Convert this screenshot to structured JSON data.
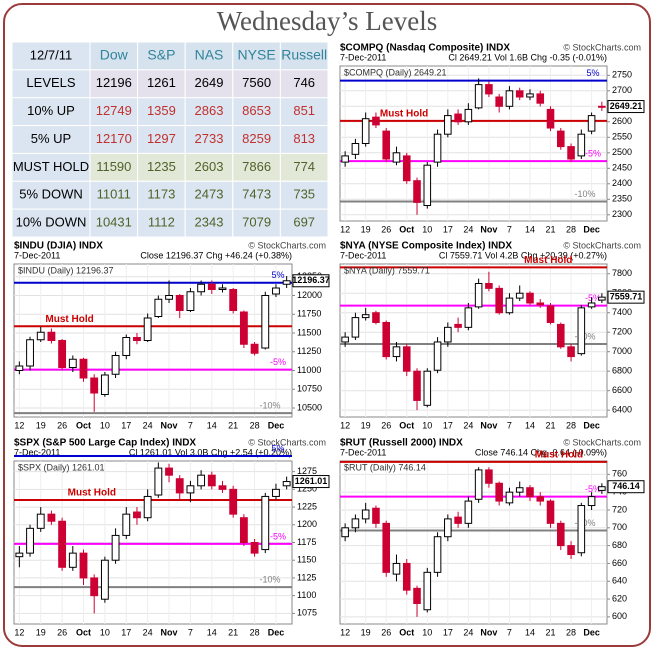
{
  "title": "Wednesday’s Levels",
  "table": {
    "header": [
      "12/7/11",
      "Dow",
      "S&P",
      "NAS",
      "NYSE",
      "Russell"
    ],
    "rows": [
      [
        "LEVELS",
        12196,
        1261,
        2649,
        7560,
        746
      ],
      [
        "10% UP",
        12749,
        1359,
        2863,
        8653,
        851
      ],
      [
        "5% UP",
        12170,
        1297,
        2733,
        8259,
        813
      ],
      [
        "MUST HOLD",
        11590,
        1235,
        2603,
        7866,
        774
      ],
      [
        "5% DOWN",
        11011,
        1173,
        2473,
        7473,
        735
      ],
      [
        "10% DOWN",
        10431,
        1112,
        2343,
        7079,
        697
      ]
    ]
  },
  "chart_data": [
    {
      "type": "candlestick",
      "title": "$COMPQ (Nasdaq Composite) INDX",
      "watermark": "© StockCharts.com",
      "date": "7-Dec-2011",
      "stats": "Cl 2649.21 Vol 1.6B Chg -0.35 (-0.01%)",
      "legend": "$COMPQ (Daily) 2649.21",
      "last_price": 2649.21,
      "up_color": "#000000",
      "down_color": "#cc0033",
      "categories": [
        "12",
        null,
        "19",
        null,
        "26",
        null,
        "Oct",
        null,
        "10",
        null,
        "17",
        null,
        "24",
        null,
        "Nov",
        null,
        "7",
        null,
        "14",
        null,
        "21",
        null,
        "28",
        null,
        "Dec",
        null
      ],
      "open": [
        2470,
        2495,
        2530,
        2615,
        2570,
        2470,
        2490,
        2410,
        2330,
        2470,
        2560,
        2625,
        2600,
        2645,
        2720,
        2680,
        2650,
        2700,
        2680,
        2690,
        2640,
        2570,
        2520,
        2490,
        2570,
        2650
      ],
      "high": [
        2505,
        2545,
        2630,
        2630,
        2580,
        2520,
        2500,
        2420,
        2470,
        2575,
        2640,
        2640,
        2660,
        2740,
        2730,
        2690,
        2715,
        2710,
        2705,
        2700,
        2650,
        2580,
        2530,
        2575,
        2630,
        2665
      ],
      "low": [
        2455,
        2480,
        2520,
        2580,
        2470,
        2460,
        2400,
        2300,
        2320,
        2455,
        2550,
        2590,
        2590,
        2640,
        2680,
        2630,
        2640,
        2670,
        2670,
        2650,
        2570,
        2510,
        2470,
        2480,
        2560,
        2635
      ],
      "close": [
        2490,
        2530,
        2610,
        2590,
        2480,
        2500,
        2410,
        2340,
        2460,
        2560,
        2620,
        2600,
        2640,
        2720,
        2690,
        2650,
        2700,
        2680,
        2690,
        2660,
        2580,
        2520,
        2480,
        2560,
        2620,
        2649.21
      ],
      "levels": [
        {
          "label": "5%",
          "value": 2733,
          "color": "#0000cc"
        },
        {
          "label": "Must Hold",
          "value": 2603,
          "color": "#cc0000"
        },
        {
          "label": "-5%",
          "value": 2473,
          "color": "#ff00ff"
        },
        {
          "label": "-10%",
          "value": 2343,
          "color": "#808080"
        }
      ],
      "ylim": [
        2280,
        2780
      ],
      "yticks": [
        2300,
        2350,
        2400,
        2450,
        2500,
        2550,
        2600,
        2650,
        2700,
        2750
      ],
      "grid": true
    },
    {
      "type": "candlestick",
      "title": "$INDU (DJIA) INDX",
      "watermark": "© StockCharts.com",
      "date": "7-Dec-2011",
      "stats": "Close 12196.37 Chg +46.24 (+0.38%)",
      "legend": "$INDU (Daily) 12196.37",
      "last_price": 12196.37,
      "up_color": "#000000",
      "down_color": "#cc0033",
      "categories": [
        "12",
        null,
        "19",
        null,
        "26",
        null,
        "Oct",
        null,
        "10",
        null,
        "17",
        null,
        "24",
        null,
        "Nov",
        null,
        "7",
        null,
        "14",
        null,
        "21",
        null,
        "28",
        null,
        "Dec",
        null
      ],
      "open": [
        11000,
        11060,
        11410,
        11510,
        11400,
        11040,
        11150,
        10900,
        10680,
        10950,
        11200,
        11440,
        11400,
        11720,
        11950,
        12000,
        11800,
        12050,
        12150,
        12080,
        12080,
        11780,
        11350,
        11300,
        12020,
        12150
      ],
      "high": [
        11120,
        11450,
        11580,
        11560,
        11420,
        11200,
        11170,
        10950,
        10980,
        11250,
        11480,
        11500,
        11760,
        12000,
        12200,
        12020,
        12100,
        12200,
        12200,
        12150,
        12100,
        11800,
        11380,
        12050,
        12150,
        12260
      ],
      "low": [
        10950,
        11000,
        11380,
        11360,
        11000,
        10980,
        10850,
        10450,
        10650,
        10900,
        11150,
        11350,
        11380,
        11700,
        11900,
        11700,
        11780,
        12000,
        12020,
        12040,
        11760,
        11300,
        11200,
        11280,
        11980,
        12100
      ],
      "close": [
        11060,
        11410,
        11510,
        11400,
        11040,
        11150,
        10900,
        10700,
        10940,
        11200,
        11440,
        11400,
        11700,
        11950,
        12000,
        11800,
        12050,
        12150,
        12080,
        12100,
        11800,
        11350,
        11230,
        12000,
        12100,
        12196.37
      ],
      "levels": [
        {
          "label": "5%",
          "value": 12170,
          "color": "#0000cc"
        },
        {
          "label": "Must Hold",
          "value": 11590,
          "color": "#cc0000"
        },
        {
          "label": "-5%",
          "value": 11011,
          "color": "#ff00ff"
        },
        {
          "label": "-10%",
          "value": 10431,
          "color": "#808080"
        }
      ],
      "ylim": [
        10380,
        12420
      ],
      "yticks": [
        10500,
        10750,
        11000,
        11250,
        11500,
        11750,
        12000,
        12250
      ],
      "grid": true
    },
    {
      "type": "candlestick",
      "title": "$NYA (NYSE Composite Index) INDX",
      "watermark": "© StockCharts.com",
      "date": "7-Dec-2011",
      "stats": "Cl 7559.71 Vol 4.2B Chg +20.39 (+0.27%)",
      "legend": "$NYA (Daily) 7559.71",
      "last_price": 7559.71,
      "up_color": "#000000",
      "down_color": "#cc0033",
      "categories": [
        "12",
        null,
        "19",
        null,
        "26",
        null,
        "Oct",
        null,
        "10",
        null,
        "17",
        null,
        "24",
        null,
        "Nov",
        null,
        "7",
        null,
        "14",
        null,
        "21",
        null,
        "28",
        null,
        "Dec",
        null
      ],
      "open": [
        7100,
        7150,
        7350,
        7400,
        7300,
        6950,
        7050,
        6800,
        6450,
        6810,
        7100,
        7280,
        7250,
        7460,
        7700,
        7650,
        7400,
        7550,
        7600,
        7500,
        7470,
        7280,
        7050,
        6980,
        7460,
        7530
      ],
      "high": [
        7200,
        7400,
        7450,
        7420,
        7320,
        7100,
        7080,
        6830,
        6830,
        7150,
        7300,
        7350,
        7500,
        7750,
        7820,
        7680,
        7600,
        7680,
        7620,
        7540,
        7500,
        7300,
        7080,
        7480,
        7560,
        7600
      ],
      "low": [
        7050,
        7120,
        7320,
        7280,
        6920,
        6900,
        6750,
        6400,
        6430,
        6780,
        7050,
        7200,
        7220,
        7440,
        7620,
        7380,
        7380,
        7520,
        7480,
        7450,
        7280,
        7030,
        6900,
        6960,
        7440,
        7500
      ],
      "close": [
        7150,
        7350,
        7380,
        7300,
        6950,
        7050,
        6800,
        6500,
        6800,
        7100,
        7250,
        7250,
        7450,
        7700,
        7650,
        7400,
        7550,
        7600,
        7500,
        7480,
        7300,
        7050,
        6950,
        7450,
        7500,
        7559.71
      ],
      "levels": [
        {
          "label": "Must Hold",
          "value": 7866,
          "color": "#cc0000"
        },
        {
          "label": "-5%",
          "value": 7473,
          "color": "#ff00ff"
        },
        {
          "label": "-10%",
          "value": 7079,
          "color": "#808080"
        }
      ],
      "ylim": [
        6330,
        7900
      ],
      "yticks": [
        6400,
        6600,
        6800,
        7000,
        7200,
        7400,
        7600,
        7800
      ],
      "grid": true
    },
    {
      "type": "candlestick",
      "title": "$SPX (S&P 500 Large Cap Index) INDX",
      "watermark": "© StockCharts.com",
      "date": "7-Dec-2011",
      "stats": "Cl 1261.01 Vol 3.0B Chg +2.54 (+0.20%)",
      "legend": "$SPX (Daily) 1261.01",
      "last_price": 1261.01,
      "up_color": "#000000",
      "down_color": "#cc0033",
      "categories": [
        "12",
        null,
        "19",
        null,
        "26",
        null,
        "Oct",
        null,
        "10",
        null,
        "17",
        null,
        "24",
        null,
        "Nov",
        null,
        "7",
        null,
        "14",
        null,
        "21",
        null,
        "28",
        null,
        "Dec",
        null
      ],
      "open": [
        1155,
        1160,
        1195,
        1215,
        1205,
        1140,
        1160,
        1125,
        1095,
        1150,
        1185,
        1218,
        1210,
        1242,
        1280,
        1265,
        1245,
        1255,
        1270,
        1255,
        1250,
        1210,
        1175,
        1165,
        1240,
        1255
      ],
      "high": [
        1170,
        1200,
        1225,
        1220,
        1210,
        1170,
        1165,
        1130,
        1155,
        1195,
        1225,
        1225,
        1250,
        1288,
        1286,
        1270,
        1262,
        1277,
        1275,
        1262,
        1255,
        1215,
        1180,
        1245,
        1258,
        1268
      ],
      "low": [
        1140,
        1155,
        1190,
        1200,
        1135,
        1135,
        1115,
        1075,
        1090,
        1145,
        1180,
        1200,
        1205,
        1238,
        1260,
        1235,
        1232,
        1250,
        1250,
        1245,
        1210,
        1170,
        1155,
        1160,
        1235,
        1250
      ],
      "close": [
        1160,
        1195,
        1215,
        1205,
        1140,
        1160,
        1125,
        1100,
        1150,
        1185,
        1215,
        1210,
        1240,
        1280,
        1270,
        1245,
        1255,
        1270,
        1255,
        1250,
        1215,
        1175,
        1160,
        1240,
        1250,
        1261.01
      ],
      "levels": [
        {
          "label": "5%",
          "value": 1297,
          "color": "#0000cc"
        },
        {
          "label": "Must Hold",
          "value": 1235,
          "color": "#cc0000"
        },
        {
          "label": "-5%",
          "value": 1173,
          "color": "#ff00ff"
        },
        {
          "label": "-10%",
          "value": 1112,
          "color": "#808080"
        }
      ],
      "ylim": [
        1060,
        1290
      ],
      "yticks": [
        1075,
        1100,
        1125,
        1150,
        1175,
        1200,
        1225,
        1250,
        1275
      ],
      "grid": true
    },
    {
      "type": "candlestick",
      "title": "$RUT (Russell 2000) INDX",
      "watermark": "© StockCharts.com",
      "date": "7-Dec-2011",
      "stats": "Close 746.14 Chg -0.64 (-0.09%)",
      "legend": "$RUT (Daily) 746.14",
      "last_price": 746.14,
      "up_color": "#000000",
      "down_color": "#cc0033",
      "categories": [
        "12",
        null,
        "19",
        null,
        "26",
        null,
        "Oct",
        null,
        "10",
        null,
        "17",
        null,
        "24",
        null,
        "Nov",
        null,
        "7",
        null,
        "14",
        null,
        "21",
        null,
        "28",
        null,
        "Dec",
        null
      ],
      "open": [
        690,
        700,
        710,
        722,
        705,
        648,
        660,
        632,
        608,
        650,
        690,
        712,
        705,
        732,
        765,
        750,
        728,
        740,
        745,
        735,
        730,
        705,
        680,
        672,
        725,
        742
      ],
      "high": [
        705,
        715,
        728,
        725,
        708,
        670,
        665,
        635,
        655,
        695,
        715,
        718,
        735,
        768,
        768,
        752,
        745,
        752,
        748,
        740,
        732,
        708,
        685,
        728,
        740,
        750
      ],
      "low": [
        685,
        695,
        705,
        700,
        645,
        640,
        625,
        600,
        605,
        645,
        685,
        700,
        700,
        728,
        745,
        725,
        725,
        735,
        730,
        725,
        700,
        675,
        665,
        668,
        720,
        738
      ],
      "close": [
        700,
        710,
        720,
        705,
        650,
        660,
        630,
        615,
        650,
        690,
        710,
        705,
        730,
        765,
        750,
        730,
        740,
        745,
        735,
        730,
        705,
        680,
        670,
        725,
        735,
        746.14
      ],
      "levels": [
        {
          "label": "Must Hold",
          "value": 774,
          "color": "#cc0000"
        },
        {
          "label": "-5%",
          "value": 735,
          "color": "#ff00ff"
        },
        {
          "label": "-10%",
          "value": 697,
          "color": "#808080"
        }
      ],
      "ylim": [
        592,
        775
      ],
      "yticks": [
        600,
        620,
        640,
        660,
        680,
        700,
        720,
        740,
        760
      ],
      "grid": true
    }
  ]
}
